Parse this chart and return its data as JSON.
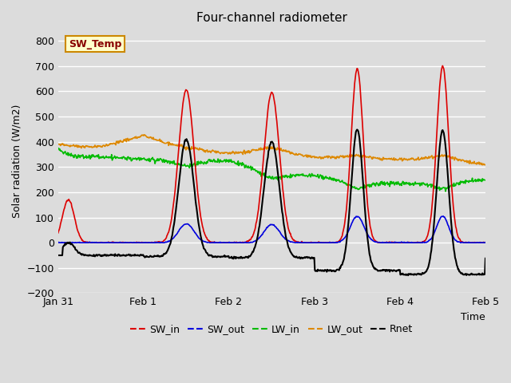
{
  "title": "Four-channel radiometer",
  "xlabel": "Time",
  "ylabel": "Solar radiation (W/m2)",
  "ylim": [
    -200,
    850
  ],
  "yticks": [
    -200,
    -100,
    0,
    100,
    200,
    300,
    400,
    500,
    600,
    700,
    800
  ],
  "bg_color": "#dcdcdc",
  "plot_bg_color": "#dcdcdc",
  "grid_color": "#ffffff",
  "colors": {
    "SW_in": "#dd0000",
    "SW_out": "#0000dd",
    "LW_in": "#00bb00",
    "LW_out": "#dd8800",
    "Rnet": "#000000"
  },
  "annotation_text": "SW_Temp",
  "annotation_bg": "#ffffcc",
  "annotation_border": "#cc8800",
  "annotation_text_color": "#880000",
  "days": [
    "Jan 31",
    "Feb 1",
    "Feb 2",
    "Feb 3",
    "Feb 4",
    "Feb 5"
  ],
  "n_points": 720
}
